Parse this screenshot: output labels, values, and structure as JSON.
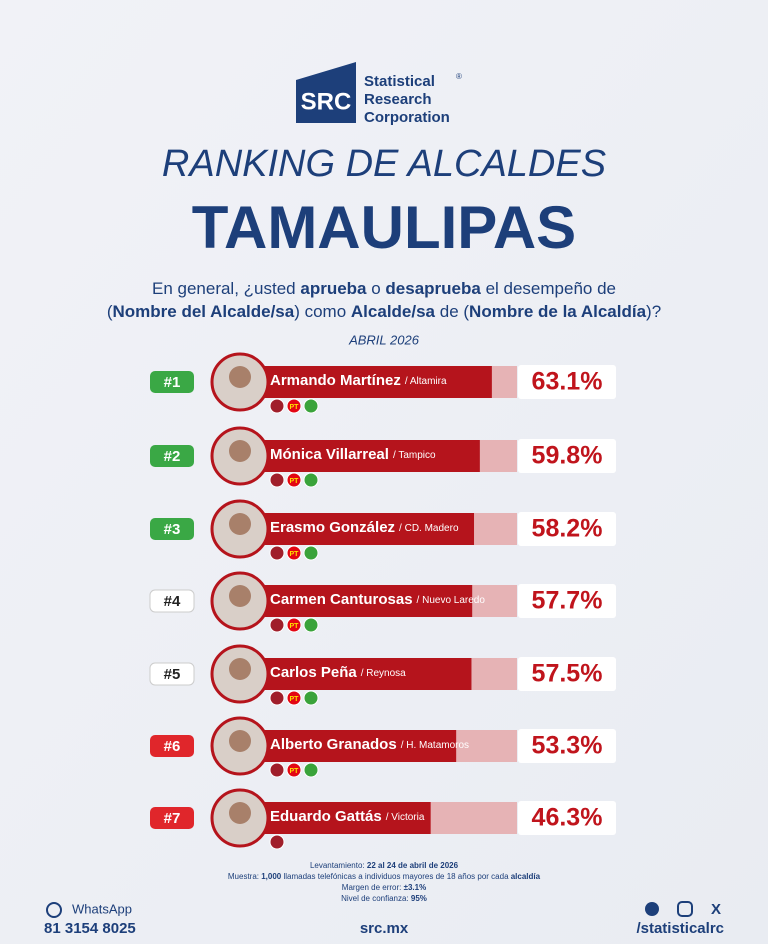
{
  "header": {
    "logo_mark": "SRC",
    "logo_lines": [
      "Statistical",
      "Research",
      "Corporation"
    ],
    "logo_reg": "®",
    "title": "RANKING DE ALCALDES",
    "subtitle": "TAMAULIPAS",
    "question": [
      [
        "En general, ¿usted ",
        "aprueba",
        " o ",
        "desaprueba",
        " el desempeño de"
      ],
      [
        "(",
        "Nombre del Alcalde/sa",
        ") como ",
        "Alcalde/sa",
        " de (",
        "Nombre de la Alcaldía",
        ")?"
      ]
    ],
    "date": "ABRIL 2026"
  },
  "ranking": {
    "xlim": [
      0,
      70
    ],
    "bar_color": "#b5141c",
    "track_color": "#e6b3b5",
    "party_label": "PT",
    "items": [
      {
        "rank": "#1",
        "badge_color": "#3aa845",
        "name": "Armando Martínez",
        "city": "/ Altamira",
        "value": 63.1,
        "value_label": "63.1%",
        "party_colors": [
          "#a01e2a",
          "#e30613",
          "#3aa33a"
        ]
      },
      {
        "rank": "#2",
        "badge_color": "#3aa845",
        "name": "Mónica Villarreal",
        "city": "/ Tampico",
        "value": 59.8,
        "value_label": "59.8%",
        "party_colors": [
          "#a01e2a",
          "#e30613",
          "#3aa33a"
        ]
      },
      {
        "rank": "#3",
        "badge_color": "#3aa845",
        "name": "Erasmo González",
        "city": "/ CD. Madero",
        "value": 58.2,
        "value_label": "58.2%",
        "party_colors": [
          "#a01e2a",
          "#e30613",
          "#3aa33a"
        ]
      },
      {
        "rank": "#4",
        "badge_color": "#ffffff",
        "name": "Carmen Canturosas",
        "city": "/ Nuevo Laredo",
        "value": 57.7,
        "value_label": "57.7%",
        "party_colors": [
          "#a01e2a",
          "#e30613",
          "#3aa33a"
        ]
      },
      {
        "rank": "#5",
        "badge_color": "#ffffff",
        "name": "Carlos Peña",
        "city": "/ Reynosa",
        "value": 57.5,
        "value_label": "57.5%",
        "party_colors": [
          "#a01e2a",
          "#e30613",
          "#3aa33a"
        ]
      },
      {
        "rank": "#6",
        "badge_color": "#e0262b",
        "name": "Alberto Granados",
        "city": "/ H. Matamoros",
        "value": 53.3,
        "value_label": "53.3%",
        "party_colors": [
          "#a01e2a",
          "#e30613",
          "#3aa33a"
        ]
      },
      {
        "rank": "#7",
        "badge_color": "#e0262b",
        "name": "Eduardo Gattás",
        "city": "/ Victoria",
        "value": 46.3,
        "value_label": "46.3%",
        "party_colors": [
          "#a01e2a"
        ]
      }
    ]
  },
  "footer": {
    "method": [
      [
        "Levantamiento: ",
        "22 al 24 de abril de 2026"
      ],
      [
        "Muestra: ",
        "1,000",
        " llamadas telefónicas a individuos mayores de 18 años por cada ",
        "alcaldía"
      ],
      [
        "Margen de error: ",
        "±3.1%"
      ],
      [
        "Nivel de confianza: ",
        "95%"
      ]
    ],
    "whatsapp": "WhatsApp",
    "phone": "81 3154 8025",
    "site": "src.mx",
    "social": "/statisticalrc",
    "x_icon": "X"
  }
}
